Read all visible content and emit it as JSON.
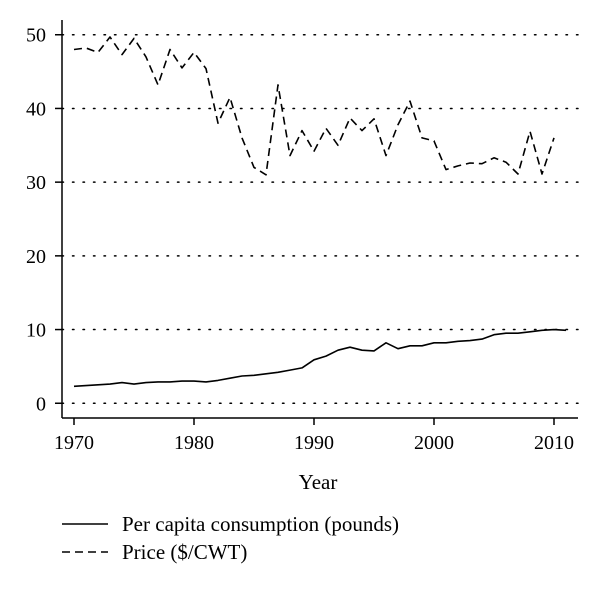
{
  "chart_data": {
    "type": "line",
    "title": "",
    "xlabel": "Year",
    "ylabel": "",
    "xlim": [
      1969,
      2012
    ],
    "ylim": [
      -2,
      52
    ],
    "x_ticks": [
      1970,
      1980,
      1990,
      2000,
      2010
    ],
    "y_ticks": [
      0,
      10,
      20,
      30,
      40,
      50
    ],
    "grid": "horizontal dotted at y ticks",
    "legend_position": "below",
    "series": [
      {
        "name": "Per capita consumption (pounds)",
        "style": "solid",
        "x": [
          1970,
          1971,
          1972,
          1973,
          1974,
          1975,
          1976,
          1977,
          1978,
          1979,
          1980,
          1981,
          1982,
          1983,
          1984,
          1985,
          1986,
          1987,
          1988,
          1989,
          1990,
          1991,
          1992,
          1993,
          1994,
          1995,
          1996,
          1997,
          1998,
          1999,
          2000,
          2001,
          2002,
          2003,
          2004,
          2005,
          2006,
          2007,
          2008,
          2009,
          2010,
          2011
        ],
        "values": [
          2.3,
          2.4,
          2.5,
          2.6,
          2.8,
          2.6,
          2.8,
          2.9,
          2.9,
          3.0,
          3.0,
          2.9,
          3.1,
          3.4,
          3.7,
          3.8,
          4.0,
          4.2,
          4.5,
          4.8,
          5.9,
          6.4,
          7.2,
          7.6,
          7.2,
          7.1,
          8.2,
          7.4,
          7.8,
          7.8,
          8.2,
          8.2,
          8.4,
          8.5,
          8.7,
          9.3,
          9.5,
          9.5,
          9.7,
          9.9,
          10.0,
          9.9
        ]
      },
      {
        "name": "Price ($/CWT)",
        "style": "dashed",
        "x": [
          1970,
          1971,
          1972,
          1973,
          1974,
          1975,
          1976,
          1977,
          1978,
          1979,
          1980,
          1981,
          1982,
          1983,
          1984,
          1985,
          1986,
          1987,
          1988,
          1989,
          1990,
          1991,
          1992,
          1993,
          1994,
          1995,
          1996,
          1997,
          1998,
          1999,
          2000,
          2001,
          2002,
          2003,
          2004,
          2005,
          2006,
          2007,
          2008,
          2009,
          2010
        ],
        "values": [
          48.0,
          48.2,
          47.6,
          49.7,
          47.3,
          49.5,
          47.0,
          43.2,
          48.0,
          45.5,
          47.6,
          45.4,
          38.0,
          41.5,
          36.0,
          32.0,
          31.0,
          43.2,
          33.6,
          37.0,
          34.2,
          37.3,
          35.0,
          38.7,
          37.0,
          38.6,
          33.6,
          37.8,
          41.0,
          36.0,
          35.6,
          31.7,
          32.2,
          32.6,
          32.5,
          33.3,
          32.7,
          31.1,
          36.9,
          31.1,
          36.0
        ]
      }
    ]
  },
  "colors": {
    "line": "#000000",
    "grid": "#000000",
    "background": "#ffffff"
  }
}
